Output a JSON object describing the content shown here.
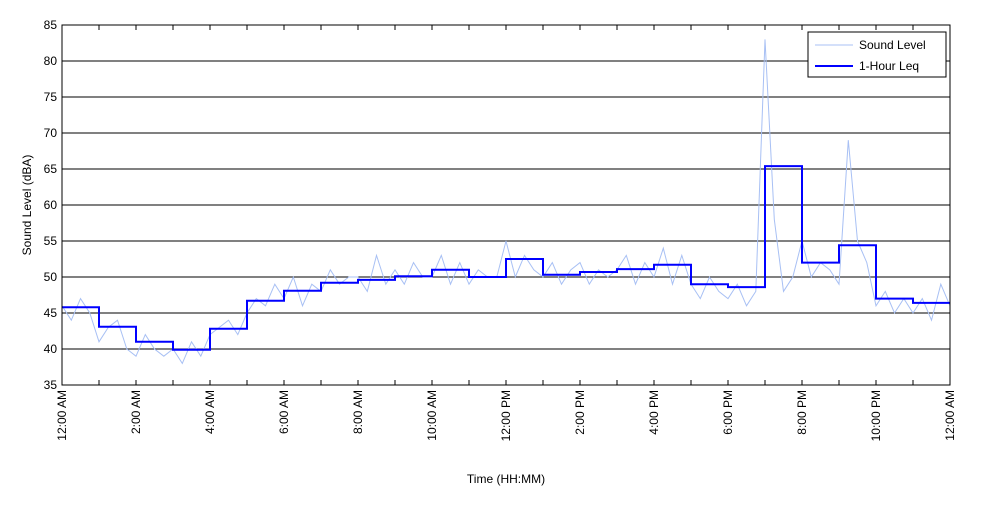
{
  "chart_data": {
    "type": "line",
    "title": "",
    "xlabel": "Time (HH:MM)",
    "ylabel": "Sound Level (dBA)",
    "xlim": [
      0,
      24
    ],
    "ylim": [
      35,
      85
    ],
    "yticks": [
      35,
      40,
      45,
      50,
      55,
      60,
      65,
      70,
      75,
      80,
      85
    ],
    "xtick_hours": [
      0,
      2,
      4,
      6,
      8,
      10,
      12,
      14,
      16,
      18,
      20,
      22,
      24
    ],
    "xtick_labels": [
      "12:00 AM",
      "2:00 AM",
      "4:00 AM",
      "6:00 AM",
      "8:00 AM",
      "10:00 AM",
      "12:00 PM",
      "2:00 PM",
      "4:00 PM",
      "6:00 PM",
      "8:00 PM",
      "10:00 PM",
      "12:00 AM"
    ],
    "grid": "horizontal",
    "legend_position": "top-right",
    "series": [
      {
        "name": "Sound Level",
        "color": "#a8c0f4",
        "sample_interval_hours": 0.25,
        "values": [
          46,
          44,
          47,
          45,
          41,
          43,
          44,
          40,
          39,
          42,
          40,
          39,
          40,
          38,
          41,
          39,
          42,
          43,
          44,
          42,
          45,
          47,
          46,
          49,
          47,
          50,
          46,
          49,
          48,
          51,
          49,
          50,
          50,
          48,
          53,
          49,
          51,
          49,
          52,
          50,
          50,
          53,
          49,
          52,
          49,
          51,
          50,
          50,
          55,
          50,
          53,
          51,
          50,
          52,
          49,
          51,
          52,
          49,
          51,
          50,
          51,
          53,
          49,
          52,
          50,
          54,
          49,
          53,
          49,
          47,
          50,
          48,
          47,
          49,
          46,
          48,
          83,
          58,
          48,
          50,
          55,
          50,
          52,
          51,
          49,
          69,
          55,
          52,
          46,
          48,
          45,
          47,
          45,
          47,
          44,
          49,
          46
        ]
      },
      {
        "name": "1-Hour Leq",
        "color": "#0000ff",
        "step_hours": 1,
        "values": [
          45.8,
          43.1,
          41.0,
          39.9,
          42.8,
          46.7,
          48.1,
          49.2,
          49.6,
          50.1,
          51.0,
          50.0,
          52.5,
          50.3,
          50.7,
          51.1,
          51.7,
          49.0,
          48.6,
          65.4,
          52.0,
          54.4,
          47.0,
          46.4
        ]
      }
    ]
  }
}
